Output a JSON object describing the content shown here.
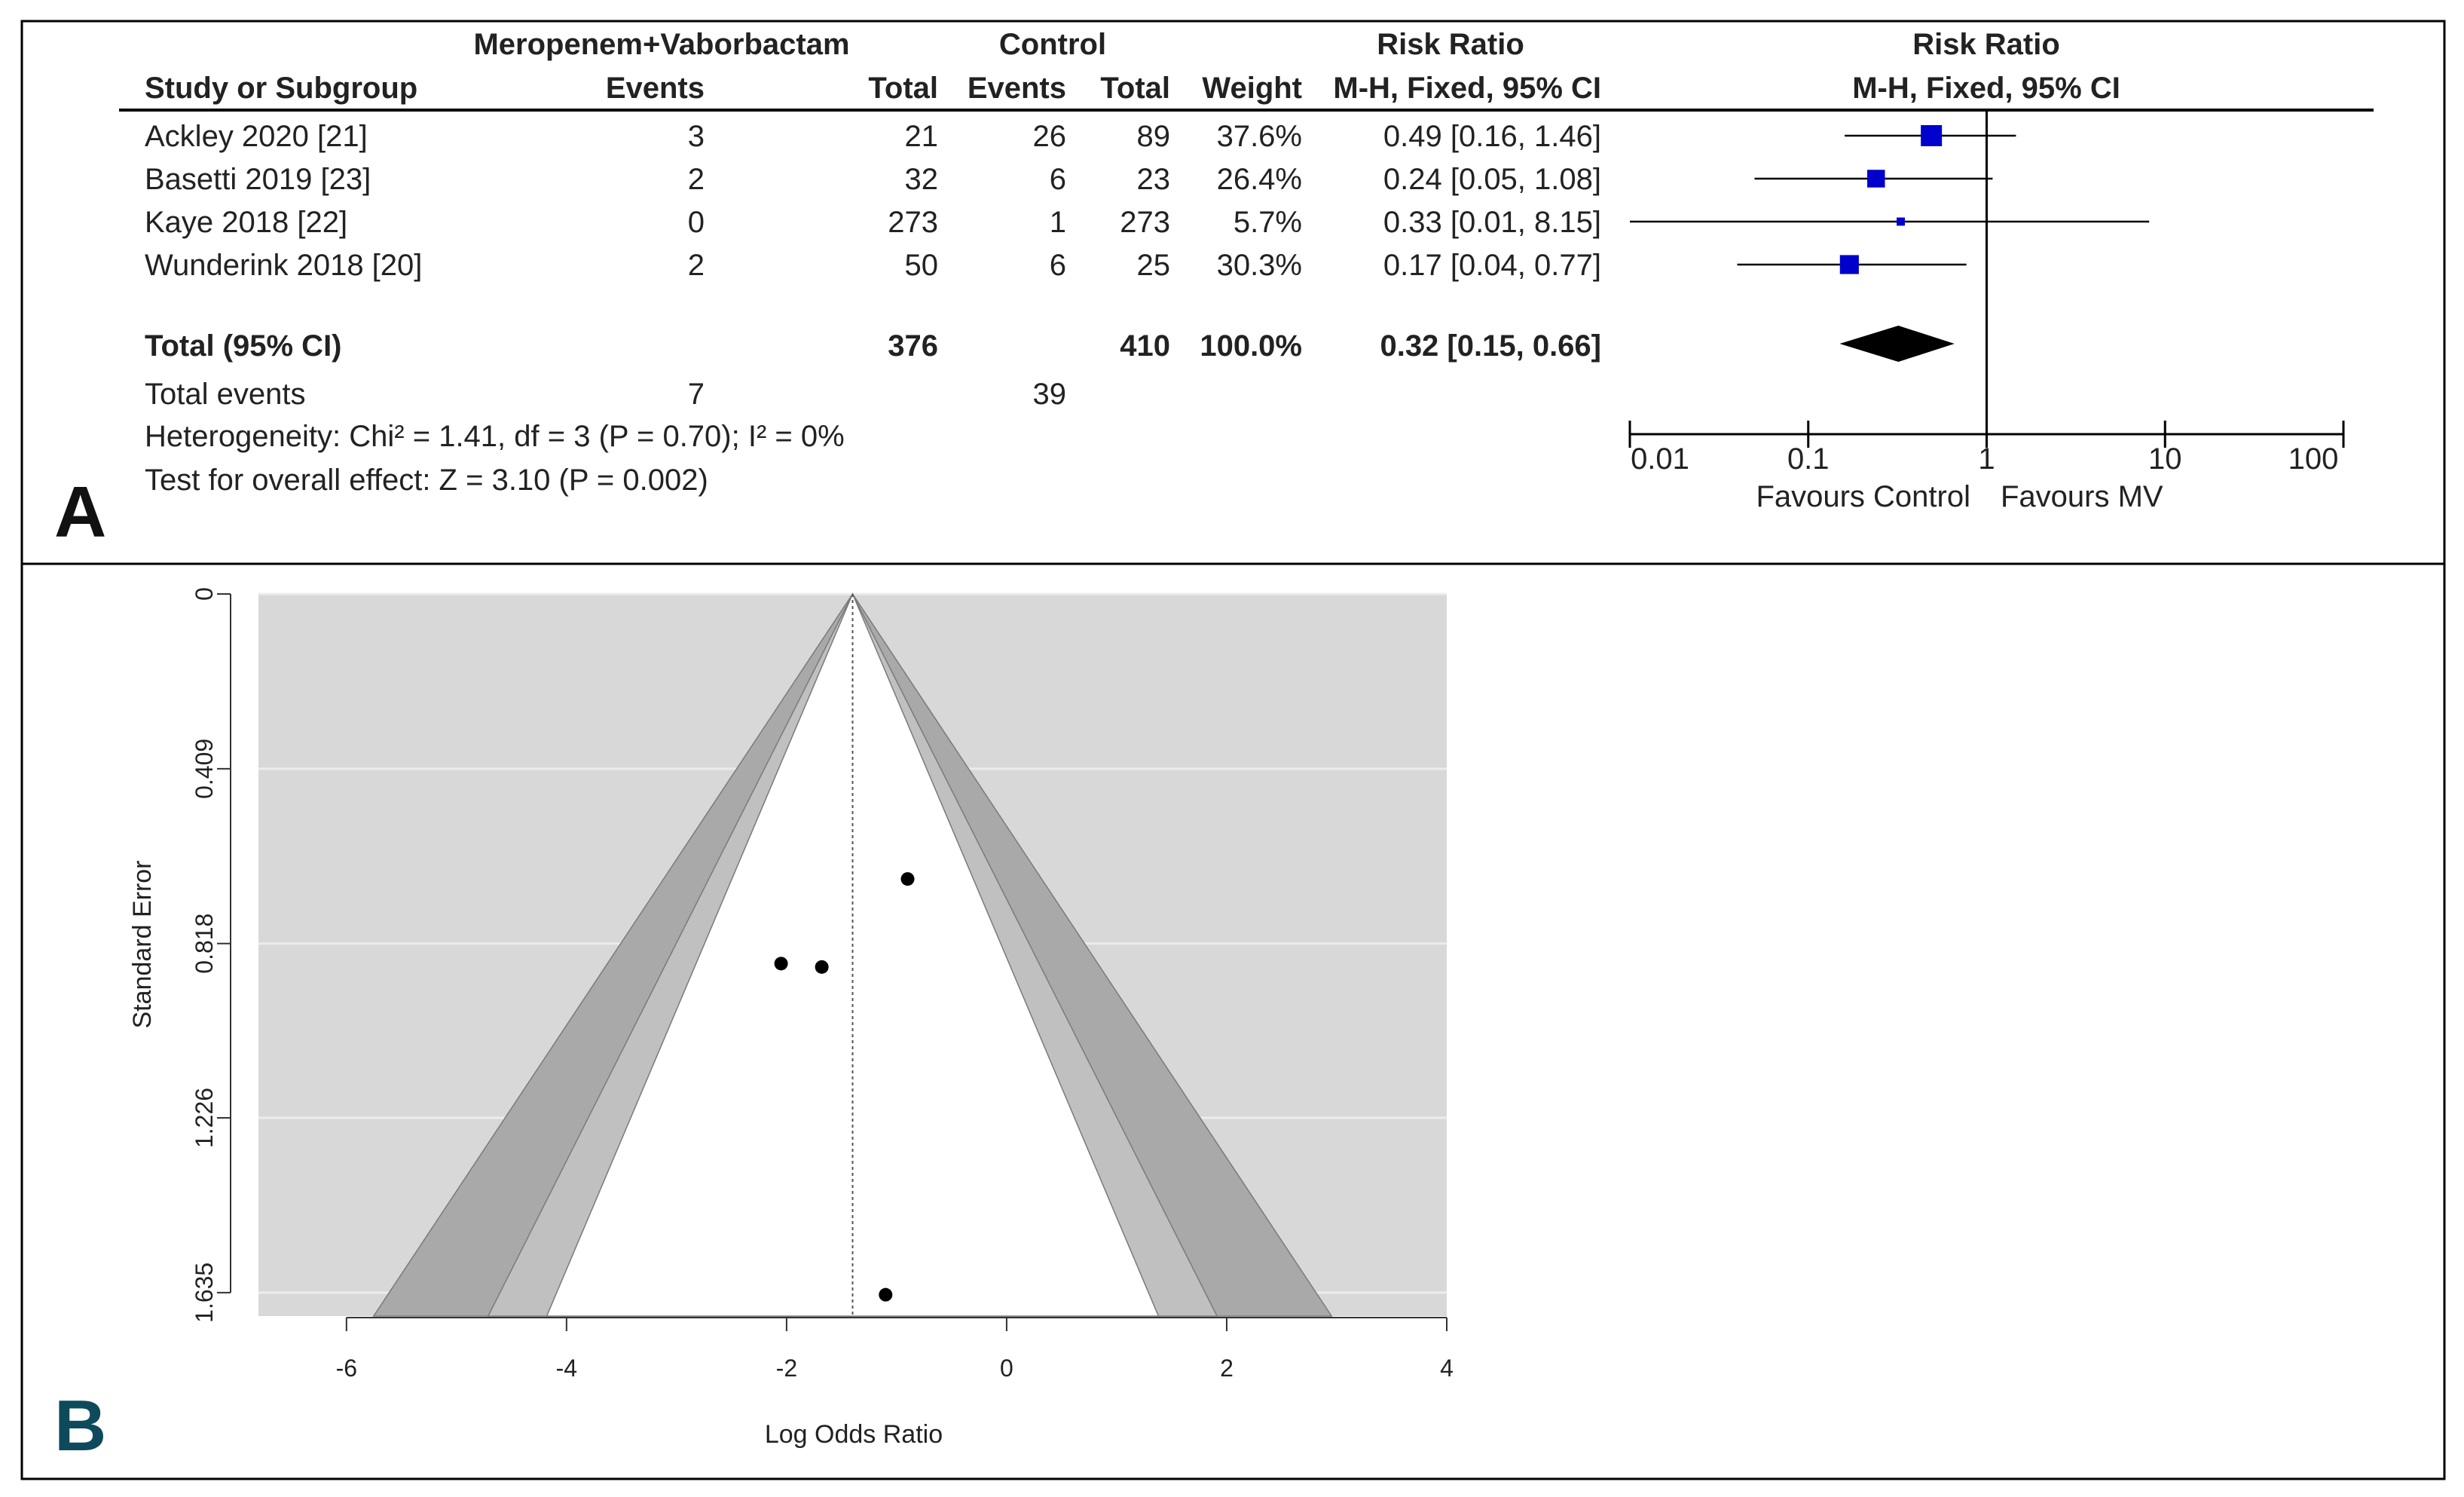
{
  "panel_a": {
    "label": "A",
    "header": {
      "group1": "Meropenem+Vaborbactam",
      "group2": "Control",
      "rr_col": "Risk Ratio",
      "plot_title": "Risk Ratio",
      "study": "Study or Subgroup",
      "events1": "Events",
      "total1": "Total",
      "events2": "Events",
      "total2": "Total",
      "weight": "Weight",
      "method": "M-H, Fixed, 95% CI",
      "plot_method": "M-H, Fixed, 95% CI"
    },
    "studies": [
      {
        "name": "Ackley 2020 [21]",
        "events1": "3",
        "total1": "21",
        "events2": "26",
        "total2": "89",
        "weight": "37.6%",
        "ci_text": "0.49 [0.16, 1.46]"
      },
      {
        "name": "Basetti 2019 [23]",
        "events1": "2",
        "total1": "32",
        "events2": "6",
        "total2": "23",
        "weight": "26.4%",
        "ci_text": "0.24 [0.05, 1.08]"
      },
      {
        "name": "Kaye 2018 [22]",
        "events1": "0",
        "total1": "273",
        "events2": "1",
        "total2": "273",
        "weight": "5.7%",
        "ci_text": "0.33 [0.01, 8.15]"
      },
      {
        "name": "Wunderink 2018 [20]",
        "events1": "2",
        "total1": "50",
        "events2": "6",
        "total2": "25",
        "weight": "30.3%",
        "ci_text": "0.17 [0.04, 0.77]"
      }
    ],
    "total": {
      "name": "Total (95% CI)",
      "total1": "376",
      "total2": "410",
      "weight": "100.0%",
      "ci_text": "0.32 [0.15, 0.66]"
    },
    "total_events": {
      "label": "Total events",
      "events1": "7",
      "events2": "39"
    },
    "heterogeneity": "Heterogeneity: Chi² = 1.41, df = 3 (P = 0.70); I² = 0%",
    "overall_effect": "Test for overall effect: Z = 3.10 (P = 0.002)",
    "axis_ticks": [
      "0.01",
      "0.1",
      "1",
      "10",
      "100"
    ],
    "favours_left": "Favours Control",
    "favours_right": "Favours MV"
  },
  "panel_b": {
    "label": "B",
    "xlabel": "Log Odds Ratio",
    "ylabel": "Standard Error",
    "x_ticks": [
      "-6",
      "-4",
      "-2",
      "0",
      "2",
      "4"
    ],
    "y_ticks": [
      "0",
      "0.409",
      "0.818",
      "1.226",
      "1.635"
    ]
  },
  "chart_data": [
    {
      "type": "forest",
      "scale": "log",
      "xlim": [
        0.01,
        100
      ],
      "reference_line": 1,
      "series": [
        {
          "name": "Ackley 2020 [21]",
          "rr": 0.49,
          "ci": [
            0.16,
            1.46
          ],
          "weight": 37.6
        },
        {
          "name": "Basetti 2019 [23]",
          "rr": 0.24,
          "ci": [
            0.05,
            1.08
          ],
          "weight": 26.4
        },
        {
          "name": "Kaye 2018 [22]",
          "rr": 0.33,
          "ci": [
            0.01,
            8.15
          ],
          "weight": 5.7
        },
        {
          "name": "Wunderink 2018 [20]",
          "rr": 0.17,
          "ci": [
            0.04,
            0.77
          ],
          "weight": 30.3
        }
      ],
      "pooled": {
        "rr": 0.32,
        "ci": [
          0.15,
          0.66
        ]
      },
      "marker_color": "#0000cc"
    },
    {
      "type": "scatter",
      "xlim": [
        -6.8,
        4
      ],
      "ylim": [
        0,
        1.69
      ],
      "y_reversed": true,
      "grid": true,
      "center": -1.4,
      "points": [
        {
          "x": -0.9,
          "y": 0.667
        },
        {
          "x": -2.05,
          "y": 0.865
        },
        {
          "x": -1.68,
          "y": 0.873
        },
        {
          "x": -1.1,
          "y": 1.64
        }
      ],
      "colors": {
        "background": "#d8d8d8",
        "band_dark": "#a9a9a9",
        "band_light": "#c0c0c0",
        "inner": "#ffffff"
      }
    }
  ]
}
